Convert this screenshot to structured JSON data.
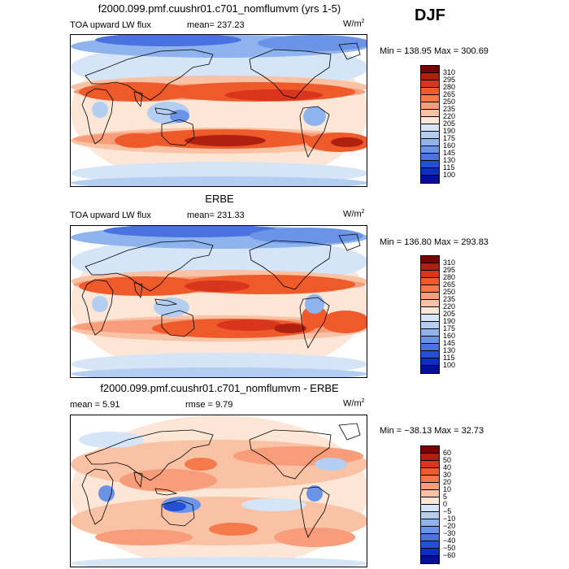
{
  "season": "DJF",
  "units": "W/m",
  "units_sup": "2",
  "panels": [
    {
      "id": "model",
      "title": "f2000.099.pmf.cuushr01.c701_nomflumvm (yrs 1-5)",
      "left_label": "TOA upward LW flux",
      "stat": "mean=  237.23",
      "rmse": "",
      "minmax": "Min = 138.95 Max = 300.69",
      "colorbar_levels": [
        "310",
        "295",
        "280",
        "265",
        "250",
        "235",
        "220",
        "205",
        "190",
        "175",
        "160",
        "145",
        "130",
        "115",
        "100"
      ],
      "colorbar_colors": [
        "#7a0000",
        "#b0200f",
        "#d8351c",
        "#ef5a2b",
        "#f47a4b",
        "#f79d7a",
        "#f9c2a5",
        "#fde6d6",
        "#d5e4f6",
        "#b4cef2",
        "#8fb3ec",
        "#6c94e6",
        "#4a72e0",
        "#2550d4",
        "#0a2fc4",
        "#04109a"
      ]
    },
    {
      "id": "obs",
      "title": "ERBE",
      "left_label": "TOA upward LW flux",
      "stat": "mean= 231.33",
      "rmse": "",
      "minmax": "Min = 136.80 Max = 293.83",
      "colorbar_levels": [
        "310",
        "295",
        "280",
        "265",
        "250",
        "235",
        "220",
        "205",
        "190",
        "175",
        "160",
        "145",
        "130",
        "115",
        "100"
      ],
      "colorbar_colors": [
        "#7a0000",
        "#b0200f",
        "#d8351c",
        "#ef5a2b",
        "#f47a4b",
        "#f79d7a",
        "#f9c2a5",
        "#fde6d6",
        "#d5e4f6",
        "#b4cef2",
        "#8fb3ec",
        "#6c94e6",
        "#4a72e0",
        "#2550d4",
        "#0a2fc4",
        "#04109a"
      ]
    },
    {
      "id": "diff",
      "title": "f2000.099.pmf.cuushr01.c701_nomflumvm - ERBE",
      "left_label": "mean =    5.91",
      "stat": "rmse =    9.79",
      "minmax": "Min = −38.13 Max =  32.73",
      "colorbar_levels": [
        "60",
        "50",
        "40",
        "30",
        "20",
        "10",
        "5",
        "0",
        "−5",
        "−10",
        "−20",
        "−30",
        "−40",
        "−50",
        "−60"
      ],
      "colorbar_colors": [
        "#7a0000",
        "#b0200f",
        "#d8351c",
        "#ef5a2b",
        "#f47a4b",
        "#f79d7a",
        "#f9c2a5",
        "#fde6d6",
        "#d5e4f6",
        "#b4cef2",
        "#8fb3ec",
        "#6c94e6",
        "#4a72e0",
        "#2550d4",
        "#0a2fc4",
        "#04109a"
      ]
    }
  ]
}
